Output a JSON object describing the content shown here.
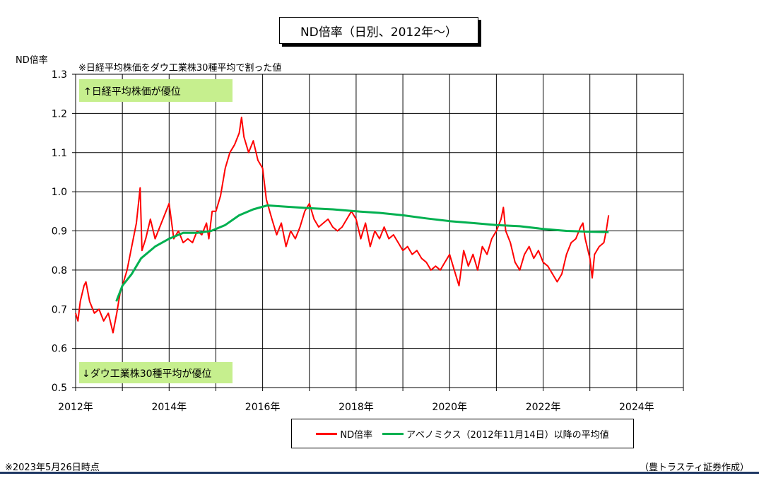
{
  "title": "ND倍率（日別、2012年～）",
  "ylabel": "ND倍率",
  "note": "※日経平均株価をダウ工業株30種平均で割った値",
  "annotations": {
    "top": "↑日経平均株価が優位",
    "bottom": "↓ダウ工業株30種平均が優位"
  },
  "footer_left": "※2023年5月26日時点",
  "footer_right": "（豊トラスティ証券作成）",
  "colors": {
    "nd": "#ff0000",
    "avg": "#00b050",
    "annotation_bg": "#c6ef8e",
    "footer_rule": "#1f3864"
  },
  "chart_data": {
    "type": "line",
    "x_range": [
      2012.0,
      2025.0
    ],
    "x_ticks": [
      "2012年",
      "2014年",
      "2016年",
      "2018年",
      "2020年",
      "2022年",
      "2024年"
    ],
    "ylim": [
      0.5,
      1.3
    ],
    "y_ticks": [
      "0.5",
      "0.6",
      "0.7",
      "0.8",
      "0.9",
      "1.0",
      "1.1",
      "1.2",
      "1.3"
    ],
    "grid": true,
    "legend_position": "bottom",
    "series": [
      {
        "name": "ND倍率",
        "color": "#ff0000",
        "points": [
          [
            2012.0,
            0.69
          ],
          [
            2012.05,
            0.67
          ],
          [
            2012.1,
            0.72
          ],
          [
            2012.18,
            0.76
          ],
          [
            2012.22,
            0.77
          ],
          [
            2012.3,
            0.72
          ],
          [
            2012.4,
            0.69
          ],
          [
            2012.5,
            0.7
          ],
          [
            2012.6,
            0.67
          ],
          [
            2012.7,
            0.69
          ],
          [
            2012.8,
            0.64
          ],
          [
            2012.88,
            0.69
          ],
          [
            2012.95,
            0.74
          ],
          [
            2013.0,
            0.76
          ],
          [
            2013.1,
            0.8
          ],
          [
            2013.2,
            0.86
          ],
          [
            2013.3,
            0.92
          ],
          [
            2013.38,
            1.01
          ],
          [
            2013.42,
            0.85
          ],
          [
            2013.5,
            0.88
          ],
          [
            2013.6,
            0.93
          ],
          [
            2013.7,
            0.88
          ],
          [
            2013.8,
            0.91
          ],
          [
            2013.9,
            0.94
          ],
          [
            2014.0,
            0.97
          ],
          [
            2014.1,
            0.88
          ],
          [
            2014.2,
            0.9
          ],
          [
            2014.3,
            0.87
          ],
          [
            2014.4,
            0.88
          ],
          [
            2014.5,
            0.87
          ],
          [
            2014.6,
            0.9
          ],
          [
            2014.7,
            0.89
          ],
          [
            2014.8,
            0.92
          ],
          [
            2014.85,
            0.88
          ],
          [
            2014.92,
            0.95
          ],
          [
            2015.0,
            0.95
          ],
          [
            2015.1,
            0.99
          ],
          [
            2015.2,
            1.06
          ],
          [
            2015.3,
            1.1
          ],
          [
            2015.4,
            1.12
          ],
          [
            2015.5,
            1.15
          ],
          [
            2015.55,
            1.19
          ],
          [
            2015.6,
            1.14
          ],
          [
            2015.7,
            1.1
          ],
          [
            2015.8,
            1.13
          ],
          [
            2015.9,
            1.08
          ],
          [
            2016.0,
            1.06
          ],
          [
            2016.08,
            0.98
          ],
          [
            2016.2,
            0.93
          ],
          [
            2016.3,
            0.89
          ],
          [
            2016.4,
            0.92
          ],
          [
            2016.5,
            0.86
          ],
          [
            2016.6,
            0.9
          ],
          [
            2016.7,
            0.88
          ],
          [
            2016.8,
            0.91
          ],
          [
            2016.9,
            0.95
          ],
          [
            2017.0,
            0.97
          ],
          [
            2017.1,
            0.93
          ],
          [
            2017.2,
            0.91
          ],
          [
            2017.3,
            0.92
          ],
          [
            2017.4,
            0.93
          ],
          [
            2017.5,
            0.91
          ],
          [
            2017.6,
            0.9
          ],
          [
            2017.7,
            0.91
          ],
          [
            2017.8,
            0.93
          ],
          [
            2017.9,
            0.95
          ],
          [
            2018.0,
            0.93
          ],
          [
            2018.1,
            0.88
          ],
          [
            2018.2,
            0.92
          ],
          [
            2018.3,
            0.86
          ],
          [
            2018.4,
            0.9
          ],
          [
            2018.5,
            0.88
          ],
          [
            2018.6,
            0.91
          ],
          [
            2018.7,
            0.88
          ],
          [
            2018.8,
            0.89
          ],
          [
            2018.9,
            0.87
          ],
          [
            2019.0,
            0.85
          ],
          [
            2019.1,
            0.86
          ],
          [
            2019.2,
            0.84
          ],
          [
            2019.3,
            0.85
          ],
          [
            2019.4,
            0.83
          ],
          [
            2019.5,
            0.82
          ],
          [
            2019.6,
            0.8
          ],
          [
            2019.7,
            0.81
          ],
          [
            2019.8,
            0.8
          ],
          [
            2019.9,
            0.82
          ],
          [
            2020.0,
            0.84
          ],
          [
            2020.1,
            0.8
          ],
          [
            2020.2,
            0.76
          ],
          [
            2020.3,
            0.85
          ],
          [
            2020.4,
            0.81
          ],
          [
            2020.5,
            0.84
          ],
          [
            2020.6,
            0.8
          ],
          [
            2020.7,
            0.86
          ],
          [
            2020.8,
            0.84
          ],
          [
            2020.9,
            0.88
          ],
          [
            2021.0,
            0.9
          ],
          [
            2021.1,
            0.93
          ],
          [
            2021.15,
            0.96
          ],
          [
            2021.2,
            0.9
          ],
          [
            2021.3,
            0.87
          ],
          [
            2021.4,
            0.82
          ],
          [
            2021.5,
            0.8
          ],
          [
            2021.6,
            0.84
          ],
          [
            2021.7,
            0.86
          ],
          [
            2021.8,
            0.83
          ],
          [
            2021.9,
            0.85
          ],
          [
            2022.0,
            0.82
          ],
          [
            2022.1,
            0.81
          ],
          [
            2022.2,
            0.79
          ],
          [
            2022.3,
            0.77
          ],
          [
            2022.4,
            0.79
          ],
          [
            2022.5,
            0.84
          ],
          [
            2022.6,
            0.87
          ],
          [
            2022.7,
            0.88
          ],
          [
            2022.8,
            0.91
          ],
          [
            2022.85,
            0.92
          ],
          [
            2022.9,
            0.88
          ],
          [
            2023.0,
            0.83
          ],
          [
            2023.05,
            0.78
          ],
          [
            2023.1,
            0.84
          ],
          [
            2023.2,
            0.86
          ],
          [
            2023.3,
            0.87
          ],
          [
            2023.35,
            0.9
          ],
          [
            2023.4,
            0.94
          ]
        ]
      },
      {
        "name": "アベノミクス（2012年11月14日）以降の平均値",
        "color": "#00b050",
        "points": [
          [
            2012.87,
            0.72
          ],
          [
            2013.0,
            0.76
          ],
          [
            2013.2,
            0.79
          ],
          [
            2013.4,
            0.83
          ],
          [
            2013.7,
            0.86
          ],
          [
            2014.0,
            0.88
          ],
          [
            2014.3,
            0.895
          ],
          [
            2014.6,
            0.895
          ],
          [
            2014.9,
            0.9
          ],
          [
            2015.2,
            0.915
          ],
          [
            2015.5,
            0.94
          ],
          [
            2015.8,
            0.955
          ],
          [
            2016.1,
            0.965
          ],
          [
            2016.5,
            0.962
          ],
          [
            2017.0,
            0.958
          ],
          [
            2017.5,
            0.955
          ],
          [
            2018.0,
            0.95
          ],
          [
            2018.5,
            0.946
          ],
          [
            2019.0,
            0.94
          ],
          [
            2019.5,
            0.932
          ],
          [
            2020.0,
            0.925
          ],
          [
            2020.5,
            0.92
          ],
          [
            2021.0,
            0.915
          ],
          [
            2021.5,
            0.912
          ],
          [
            2022.0,
            0.905
          ],
          [
            2022.5,
            0.9
          ],
          [
            2023.0,
            0.898
          ],
          [
            2023.4,
            0.897
          ]
        ]
      }
    ]
  }
}
